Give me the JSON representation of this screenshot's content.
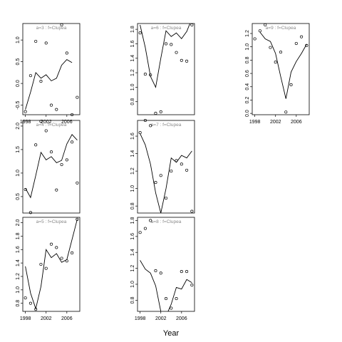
{
  "figure": {
    "xlabel": "Year"
  },
  "chart_data": [
    {
      "type": "line",
      "title": "a=3  :  f=Clupea",
      "x_ticks": [
        "1998",
        "2002",
        "2006"
      ],
      "y_ticks": [
        "-0.5",
        "0.0",
        "0.5",
        "1.0"
      ],
      "xlim": [
        1997.5,
        2008.5
      ],
      "ylim": [
        -0.72,
        1.38
      ],
      "x": [
        1998,
        1999,
        2000,
        2001,
        2002,
        2003,
        2004,
        2005,
        2006,
        2007
      ],
      "line": [
        -0.6,
        -0.2,
        0.25,
        0.12,
        0.2,
        0.06,
        0.12,
        0.42,
        0.55,
        0.48
      ],
      "points": [
        -0.65,
        0.18,
        0.97,
        0.05,
        0.93,
        -0.5,
        -0.6,
        1.35,
        0.7,
        -0.72,
        -0.32
      ],
      "points_x": [
        1998,
        1999,
        2000,
        2001,
        2002,
        2003,
        2004,
        2005,
        2006,
        2007,
        2008
      ]
    },
    {
      "type": "line",
      "title": "a=6  :  f=Clupea",
      "x_ticks": [],
      "y_ticks": [
        "0.8",
        "1.0",
        "1.2",
        "1.4",
        "1.6",
        "1.8"
      ],
      "xlim": [
        1997.5,
        2008.5
      ],
      "ylim": [
        0.62,
        1.88
      ],
      "x": [
        1998,
        1999,
        2000,
        2001,
        2002,
        2003,
        2004,
        2005,
        2006,
        2007,
        2008
      ],
      "line": [
        1.86,
        1.55,
        1.15,
        1.0,
        1.4,
        1.78,
        1.7,
        1.75,
        1.67,
        1.77,
        1.95
      ],
      "points": [
        1.75,
        1.18,
        1.17,
        0.64,
        0.66,
        1.6,
        1.59,
        1.48,
        1.37,
        1.36,
        1.86
      ],
      "points_x": [
        1998,
        1999,
        2000,
        2001,
        2002,
        2003,
        2004,
        2005,
        2006,
        2007,
        2008
      ]
    },
    {
      "type": "line",
      "title": "a=9  :  f=Clupea",
      "x_ticks": [
        "1998",
        "2002",
        "2006"
      ],
      "y_ticks": [
        "0.0",
        "0.2",
        "0.4",
        "0.6",
        "0.8",
        "1.0",
        "1.2"
      ],
      "xlim": [
        1997.5,
        2008.5
      ],
      "ylim": [
        -0.02,
        1.35
      ],
      "x": [
        1999,
        2000,
        2001,
        2002,
        2003,
        2004,
        2005,
        2006,
        2007,
        2008
      ],
      "line": [
        1.22,
        1.12,
        1.08,
        0.9,
        0.55,
        0.22,
        0.62,
        0.78,
        0.9,
        1.04
      ],
      "points": [
        1.12,
        1.24,
        1.33,
        0.99,
        0.77,
        0.92,
        0.02,
        0.43,
        1.05,
        1.15,
        1.02
      ],
      "points_x": [
        1998,
        1999,
        2000,
        2001,
        2002,
        2003,
        2004,
        2005,
        2006,
        2007,
        2008
      ]
    },
    {
      "type": "line",
      "title": "a=4  :  f=Clupea",
      "x_ticks": [],
      "y_ticks": [
        "0.5",
        "1.0",
        "1.5",
        "2.0"
      ],
      "xlim": [
        1997.5,
        2008.5
      ],
      "ylim": [
        0.15,
        2.12
      ],
      "x": [
        1998,
        1999,
        2000,
        2001,
        2002,
        2003,
        2004,
        2005,
        2006,
        2007,
        2008
      ],
      "line": [
        0.68,
        0.48,
        0.95,
        1.44,
        1.28,
        1.35,
        1.22,
        1.27,
        1.62,
        1.82,
        1.7
      ],
      "points": [
        0.65,
        0.16,
        1.6,
        2.1,
        1.9,
        1.45,
        0.64,
        1.18,
        1.28,
        1.66,
        0.79
      ],
      "points_x": [
        1998,
        1999,
        2000,
        2001,
        2002,
        2003,
        2004,
        2005,
        2006,
        2007,
        2008
      ]
    },
    {
      "type": "line",
      "title": "a=7  :  f=Clupea",
      "x_ticks": [],
      "y_ticks": [
        "0.8",
        "1.0",
        "1.2",
        "1.4",
        "1.6"
      ],
      "xlim": [
        1997.5,
        2008.5
      ],
      "ylim": [
        0.72,
        1.78
      ],
      "x": [
        1998,
        1999,
        2000,
        2001,
        2002,
        2003,
        2004,
        2005,
        2006,
        2007,
        2008
      ],
      "line": [
        1.63,
        1.5,
        1.28,
        0.95,
        0.72,
        1.0,
        1.35,
        1.3,
        1.38,
        1.35,
        1.43
      ],
      "points": [
        1.64,
        1.78,
        1.72,
        1.07,
        1.15,
        0.89,
        1.2,
        1.32,
        1.28,
        1.21,
        0.74
      ],
      "points_x": [
        1998,
        1999,
        2000,
        2001,
        2002,
        2003,
        2004,
        2005,
        2006,
        2007,
        2008
      ]
    },
    {
      "type": "line",
      "title": "a=5  :  f=Clupea",
      "x_ticks": [
        "1998",
        "2002",
        "2006"
      ],
      "y_ticks": [
        "0.8",
        "1.0",
        "1.2",
        "1.4",
        "1.6",
        "1.8",
        "2.0"
      ],
      "xlim": [
        1997.5,
        2008.5
      ],
      "ylim": [
        0.68,
        2.08
      ],
      "x": [
        1998,
        1999,
        2000,
        2001,
        2002,
        2003,
        2004,
        2005,
        2006,
        2007,
        2008
      ],
      "line": [
        1.35,
        0.95,
        0.72,
        1.05,
        1.6,
        1.48,
        1.54,
        1.41,
        1.45,
        1.75,
        2.05
      ],
      "points": [
        0.88,
        0.8,
        0.71,
        1.38,
        1.32,
        1.68,
        1.63,
        1.47,
        1.43,
        1.55,
        2.05
      ],
      "points_x": [
        1998,
        1999,
        2000,
        2001,
        2002,
        2003,
        2004,
        2005,
        2006,
        2007,
        2008
      ]
    },
    {
      "type": "line",
      "title": "a=8  :  f=Clupea",
      "x_ticks": [
        "1998",
        "2002",
        "2006"
      ],
      "y_ticks": [
        "0.8",
        "1.0",
        "1.2",
        "1.4",
        "1.6",
        "1.8"
      ],
      "xlim": [
        1997.5,
        2008.5
      ],
      "ylim": [
        0.66,
        1.84
      ],
      "x": [
        1998,
        1999,
        2000,
        2001,
        2002,
        2003,
        2004,
        2005,
        2006,
        2007,
        2008
      ],
      "line": [
        1.3,
        1.19,
        1.14,
        0.98,
        0.66,
        0.6,
        0.75,
        0.96,
        0.94,
        1.06,
        1.02
      ],
      "points": [
        1.65,
        1.7,
        1.8,
        1.17,
        1.14,
        0.82,
        0.7,
        0.82,
        1.16,
        1.16,
        0.99
      ],
      "points_x": [
        1998,
        1999,
        2000,
        2001,
        2002,
        2003,
        2004,
        2005,
        2006,
        2007,
        2008
      ]
    }
  ]
}
